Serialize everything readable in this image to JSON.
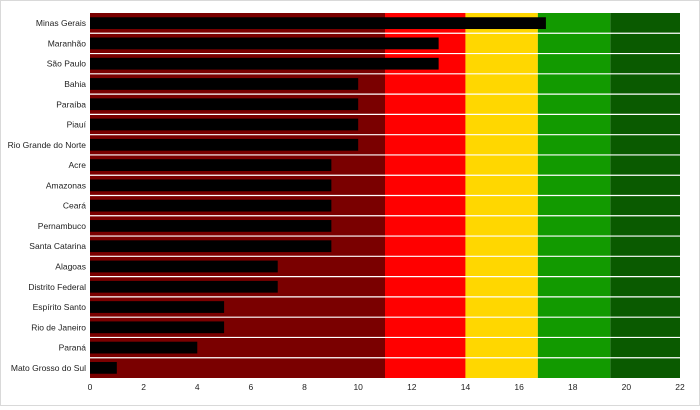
{
  "chart_data": {
    "type": "bar",
    "orientation": "horizontal",
    "categories": [
      "Minas Gerais",
      "Maranhão",
      "São Paulo",
      "Bahia",
      "Paraíba",
      "Piauí",
      "Rio Grande do Norte",
      "Acre",
      "Amazonas",
      "Ceará",
      "Pernambuco",
      "Santa Catarina",
      "Alagoas",
      "Distrito Federal",
      "Espírito Santo",
      "Rio de Janeiro",
      "Paraná",
      "Mato Grosso do Sul"
    ],
    "values": [
      17,
      13,
      13,
      10,
      10,
      10,
      10,
      9,
      9,
      9,
      9,
      9,
      7,
      7,
      5,
      5,
      4,
      1
    ],
    "xlim": [
      0,
      22
    ],
    "xticks": [
      0,
      2,
      4,
      6,
      8,
      10,
      12,
      14,
      16,
      18,
      20,
      22
    ],
    "title": "",
    "xlabel": "",
    "ylabel": "",
    "grid": false,
    "legend": "none",
    "bar_color": "#000000",
    "background_bands": [
      {
        "from": 0,
        "to": 11,
        "color": "#7a0000"
      },
      {
        "from": 11,
        "to": 14,
        "color": "#ff0000"
      },
      {
        "from": 14,
        "to": 16.7,
        "color": "#ffd700"
      },
      {
        "from": 16.7,
        "to": 19.4,
        "color": "#129a00"
      },
      {
        "from": 19.4,
        "to": 22,
        "color": "#0a5a00"
      }
    ]
  }
}
